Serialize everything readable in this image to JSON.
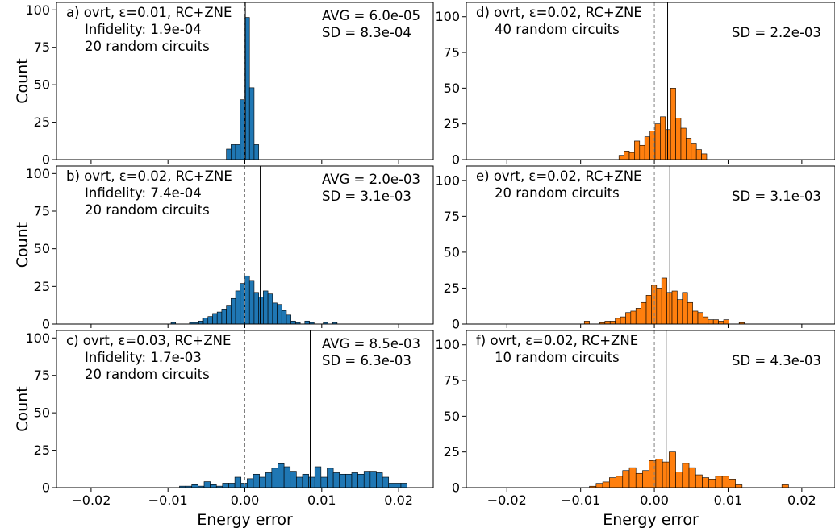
{
  "figure": {
    "ylabel": "Count",
    "xlabel": "Energy error",
    "x_ticks": [
      -0.02,
      -0.01,
      0.0,
      0.01,
      0.02
    ],
    "x_tick_labels": [
      "−0.02",
      "−0.01",
      "0.00",
      "0.01",
      "0.02"
    ],
    "y_ticks": [
      0,
      25,
      50,
      75,
      100
    ],
    "y_tick_labels": [
      "0",
      "25",
      "50",
      "75",
      "100"
    ]
  },
  "colors": {
    "blue": "#1f77b4",
    "orange": "#ff7f0e"
  },
  "chart_data": [
    {
      "type": "bar",
      "panel": "a",
      "color": "blue",
      "col": 0,
      "row": 0,
      "annotation_lines": [
        "a) ovrt, ε=0.01, RC+ZNE",
        "Infidelity: 1.9e-04",
        "20 random circuits"
      ],
      "stats_lines": [
        "AVG = 6.0e-05",
        "SD = 8.3e-04"
      ],
      "xlim": [
        -0.0245,
        0.0245
      ],
      "ylim": [
        0,
        105
      ],
      "mean_line": 6e-05,
      "zero_line": 0.0,
      "bin_width": 0.0006,
      "bins": [
        [
          -0.0024,
          7
        ],
        [
          -0.0018,
          10
        ],
        [
          -0.0012,
          10
        ],
        [
          -0.0006,
          40
        ],
        [
          0.0,
          95
        ],
        [
          0.0006,
          48
        ],
        [
          0.0012,
          10
        ]
      ]
    },
    {
      "type": "bar",
      "panel": "b",
      "color": "blue",
      "col": 0,
      "row": 1,
      "annotation_lines": [
        "b) ovrt, ε=0.02, RC+ZNE",
        "Infidelity: 7.4e-04",
        "20 random circuits"
      ],
      "stats_lines": [
        "AVG = 2.0e-03",
        "SD = 3.1e-03"
      ],
      "xlim": [
        -0.0245,
        0.0245
      ],
      "ylim": [
        0,
        105
      ],
      "mean_line": 0.002,
      "zero_line": 0.0,
      "bin_width": 0.0006,
      "bins": [
        [
          -0.0096,
          1
        ],
        [
          -0.0072,
          1
        ],
        [
          -0.0066,
          1
        ],
        [
          -0.006,
          2
        ],
        [
          -0.0054,
          4
        ],
        [
          -0.0048,
          5
        ],
        [
          -0.0042,
          7
        ],
        [
          -0.0036,
          8
        ],
        [
          -0.003,
          10
        ],
        [
          -0.0024,
          12
        ],
        [
          -0.0018,
          17
        ],
        [
          -0.0012,
          22
        ],
        [
          -0.0006,
          27
        ],
        [
          0.0,
          32
        ],
        [
          0.0006,
          29
        ],
        [
          0.0012,
          21
        ],
        [
          0.0018,
          18
        ],
        [
          0.0024,
          22
        ],
        [
          0.003,
          20
        ],
        [
          0.0036,
          14
        ],
        [
          0.0042,
          13
        ],
        [
          0.0048,
          9
        ],
        [
          0.0054,
          6
        ],
        [
          0.006,
          2
        ],
        [
          0.0066,
          1
        ],
        [
          0.0078,
          2
        ],
        [
          0.0084,
          1
        ],
        [
          0.0102,
          1
        ],
        [
          0.0114,
          1
        ]
      ]
    },
    {
      "type": "bar",
      "panel": "c",
      "color": "blue",
      "col": 0,
      "row": 2,
      "annotation_lines": [
        "c) ovrt, ε=0.03, RC+ZNE",
        "Infidelity: 1.7e-03",
        "20 random circuits"
      ],
      "stats_lines": [
        "AVG = 8.5e-03",
        "SD = 6.3e-03"
      ],
      "xlim": [
        -0.0245,
        0.0245
      ],
      "ylim": [
        0,
        105
      ],
      "mean_line": 0.0085,
      "zero_line": 0.0,
      "bin_width": 0.0008,
      "bins": [
        [
          -0.0085,
          1
        ],
        [
          -0.0077,
          1
        ],
        [
          -0.0069,
          2
        ],
        [
          -0.0061,
          1
        ],
        [
          -0.0053,
          4
        ],
        [
          -0.0045,
          2
        ],
        [
          -0.0037,
          1
        ],
        [
          -0.0029,
          3
        ],
        [
          -0.0021,
          3
        ],
        [
          -0.0013,
          7
        ],
        [
          -0.0005,
          3
        ],
        [
          0.0003,
          6
        ],
        [
          0.0011,
          9
        ],
        [
          0.0019,
          7
        ],
        [
          0.0027,
          10
        ],
        [
          0.0035,
          13
        ],
        [
          0.0043,
          16
        ],
        [
          0.0051,
          14
        ],
        [
          0.0059,
          11
        ],
        [
          0.0067,
          7
        ],
        [
          0.0075,
          9
        ],
        [
          0.0083,
          7
        ],
        [
          0.0091,
          14
        ],
        [
          0.0099,
          7
        ],
        [
          0.0107,
          13
        ],
        [
          0.0115,
          10
        ],
        [
          0.0123,
          9
        ],
        [
          0.0131,
          9
        ],
        [
          0.0139,
          10
        ],
        [
          0.0147,
          9
        ],
        [
          0.0155,
          11
        ],
        [
          0.0163,
          11
        ],
        [
          0.0171,
          10
        ],
        [
          0.0179,
          7
        ],
        [
          0.0187,
          3
        ],
        [
          0.0195,
          3
        ],
        [
          0.0203,
          3
        ]
      ]
    },
    {
      "type": "bar",
      "panel": "d",
      "color": "orange",
      "col": 1,
      "row": 0,
      "annotation_lines": [
        "d) ovrt, ε=0.02, RC+ZNE",
        "40 random circuits"
      ],
      "stats_lines": [
        "SD = 2.2e-03"
      ],
      "xlim": [
        -0.0255,
        0.0245
      ],
      "ylim": [
        0,
        110
      ],
      "mean_line": 0.0018,
      "zero_line": 0.0,
      "bin_width": 0.0007,
      "bins": [
        [
          -0.0048,
          3
        ],
        [
          -0.0041,
          6
        ],
        [
          -0.0034,
          5
        ],
        [
          -0.0027,
          13
        ],
        [
          -0.002,
          10
        ],
        [
          -0.0013,
          16
        ],
        [
          -0.0006,
          20
        ],
        [
          0.0001,
          25
        ],
        [
          0.0008,
          30
        ],
        [
          0.0015,
          21
        ],
        [
          0.0022,
          50
        ],
        [
          0.0029,
          29
        ],
        [
          0.0036,
          22
        ],
        [
          0.0043,
          15
        ],
        [
          0.005,
          11
        ],
        [
          0.0057,
          7
        ],
        [
          0.0064,
          4
        ]
      ]
    },
    {
      "type": "bar",
      "panel": "e",
      "color": "orange",
      "col": 1,
      "row": 1,
      "annotation_lines": [
        "e) ovrt, ε=0.02, RC+ZNE",
        "20 random circuits"
      ],
      "stats_lines": [
        "SD = 3.1e-03"
      ],
      "xlim": [
        -0.0255,
        0.0245
      ],
      "ylim": [
        0,
        110
      ],
      "mean_line": 0.0021,
      "zero_line": 0.0,
      "bin_width": 0.0007,
      "bins": [
        [
          -0.0095,
          2
        ],
        [
          -0.0074,
          1
        ],
        [
          -0.0067,
          2
        ],
        [
          -0.006,
          2
        ],
        [
          -0.0053,
          4
        ],
        [
          -0.0046,
          5
        ],
        [
          -0.0039,
          8
        ],
        [
          -0.0032,
          9
        ],
        [
          -0.0025,
          11
        ],
        [
          -0.0018,
          15
        ],
        [
          -0.0011,
          20
        ],
        [
          -0.0004,
          27
        ],
        [
          0.0003,
          25
        ],
        [
          0.001,
          32
        ],
        [
          0.0017,
          22
        ],
        [
          0.0024,
          23
        ],
        [
          0.0031,
          17
        ],
        [
          0.0038,
          22
        ],
        [
          0.0045,
          15
        ],
        [
          0.0052,
          9
        ],
        [
          0.0059,
          8
        ],
        [
          0.0066,
          5
        ],
        [
          0.0073,
          3
        ],
        [
          0.008,
          3
        ],
        [
          0.0087,
          2
        ],
        [
          0.0094,
          3
        ],
        [
          0.0115,
          1
        ]
      ]
    },
    {
      "type": "bar",
      "panel": "f",
      "color": "orange",
      "col": 1,
      "row": 2,
      "annotation_lines": [
        "f) ovrt, ε=0.02, RC+ZNE",
        "10 random circuits"
      ],
      "stats_lines": [
        "SD = 4.3e-03"
      ],
      "xlim": [
        -0.0255,
        0.0245
      ],
      "ylim": [
        0,
        110
      ],
      "mean_line": 0.0016,
      "zero_line": 0.0,
      "bin_width": 0.0009,
      "bins": [
        [
          -0.0088,
          1
        ],
        [
          -0.0079,
          3
        ],
        [
          -0.007,
          4
        ],
        [
          -0.0061,
          7
        ],
        [
          -0.0052,
          8
        ],
        [
          -0.0043,
          12
        ],
        [
          -0.0034,
          14
        ],
        [
          -0.0025,
          10
        ],
        [
          -0.0016,
          12
        ],
        [
          -0.0007,
          19
        ],
        [
          0.0002,
          20
        ],
        [
          0.0011,
          18
        ],
        [
          0.002,
          25
        ],
        [
          0.0029,
          11
        ],
        [
          0.0038,
          17
        ],
        [
          0.0047,
          14
        ],
        [
          0.0056,
          9
        ],
        [
          0.0065,
          7
        ],
        [
          0.0074,
          6
        ],
        [
          0.0083,
          8
        ],
        [
          0.0092,
          8
        ],
        [
          0.0101,
          6
        ],
        [
          0.011,
          2
        ],
        [
          0.0173,
          2
        ]
      ]
    }
  ]
}
